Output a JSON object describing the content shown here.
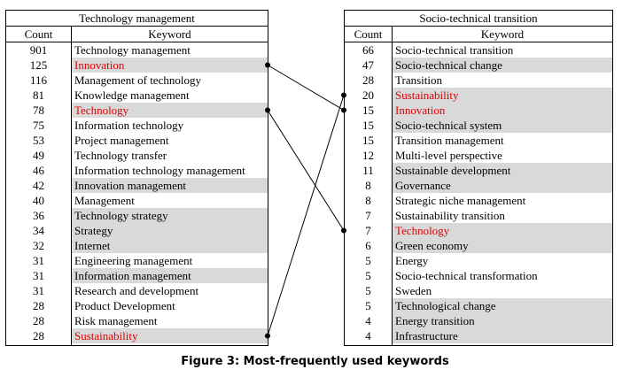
{
  "left_table": {
    "title": "Technology management",
    "count_header": "Count",
    "keyword_header": "Keyword",
    "rows": [
      {
        "count": "901",
        "keyword": "Technology management",
        "highlight": false,
        "red": false
      },
      {
        "count": "125",
        "keyword": "Innovation",
        "highlight": true,
        "red": true
      },
      {
        "count": "116",
        "keyword": "Management of technology",
        "highlight": false,
        "red": false
      },
      {
        "count": "81",
        "keyword": "Knowledge management",
        "highlight": false,
        "red": false
      },
      {
        "count": "78",
        "keyword": "Technology",
        "highlight": true,
        "red": true
      },
      {
        "count": "75",
        "keyword": "Information technology",
        "highlight": false,
        "red": false
      },
      {
        "count": "53",
        "keyword": "Project management",
        "highlight": false,
        "red": false
      },
      {
        "count": "49",
        "keyword": "Technology transfer",
        "highlight": false,
        "red": false
      },
      {
        "count": "46",
        "keyword": "Information technology management",
        "highlight": false,
        "red": false
      },
      {
        "count": "42",
        "keyword": "Innovation management",
        "highlight": true,
        "red": false
      },
      {
        "count": "40",
        "keyword": "Management",
        "highlight": false,
        "red": false
      },
      {
        "count": "36",
        "keyword": "Technology strategy",
        "highlight": true,
        "red": false
      },
      {
        "count": "34",
        "keyword": "Strategy",
        "highlight": true,
        "red": false
      },
      {
        "count": "32",
        "keyword": "Internet",
        "highlight": true,
        "red": false
      },
      {
        "count": "31",
        "keyword": "Engineering management",
        "highlight": false,
        "red": false
      },
      {
        "count": "31",
        "keyword": "Information management",
        "highlight": true,
        "red": false
      },
      {
        "count": "31",
        "keyword": "Research and development",
        "highlight": false,
        "red": false
      },
      {
        "count": "28",
        "keyword": "Product Development",
        "highlight": false,
        "red": false
      },
      {
        "count": "28",
        "keyword": "Risk management",
        "highlight": false,
        "red": false
      },
      {
        "count": "28",
        "keyword": "Sustainability",
        "highlight": true,
        "red": true
      }
    ]
  },
  "right_table": {
    "title": "Socio-technical transition",
    "count_header": "Count",
    "keyword_header": "Keyword",
    "rows": [
      {
        "count": "66",
        "keyword": "Socio-technical transition",
        "highlight": false,
        "red": false
      },
      {
        "count": "47",
        "keyword": "Socio-technical change",
        "highlight": true,
        "red": false
      },
      {
        "count": "28",
        "keyword": "Transition",
        "highlight": false,
        "red": false
      },
      {
        "count": "20",
        "keyword": "Sustainability",
        "highlight": true,
        "red": true
      },
      {
        "count": "15",
        "keyword": "Innovation",
        "highlight": true,
        "red": true
      },
      {
        "count": "15",
        "keyword": "Socio-technical system",
        "highlight": true,
        "red": false
      },
      {
        "count": "15",
        "keyword": "Transition management",
        "highlight": false,
        "red": false
      },
      {
        "count": "12",
        "keyword": "Multi-level perspective",
        "highlight": false,
        "red": false
      },
      {
        "count": "11",
        "keyword": "Sustainable development",
        "highlight": true,
        "red": false
      },
      {
        "count": "8",
        "keyword": "Governance",
        "highlight": true,
        "red": false
      },
      {
        "count": "8",
        "keyword": "Strategic niche management",
        "highlight": false,
        "red": false
      },
      {
        "count": "7",
        "keyword": "Sustainability transition",
        "highlight": false,
        "red": false
      },
      {
        "count": "7",
        "keyword": "Technology",
        "highlight": true,
        "red": true
      },
      {
        "count": "6",
        "keyword": "Green economy",
        "highlight": true,
        "red": false
      },
      {
        "count": "5",
        "keyword": "Energy",
        "highlight": false,
        "red": false
      },
      {
        "count": "5",
        "keyword": "Socio-technical transformation",
        "highlight": false,
        "red": false
      },
      {
        "count": "5",
        "keyword": "Sweden",
        "highlight": false,
        "red": false
      },
      {
        "count": "5",
        "keyword": "Technological change",
        "highlight": true,
        "red": false
      },
      {
        "count": "4",
        "keyword": "Energy transition",
        "highlight": true,
        "red": false
      },
      {
        "count": "4",
        "keyword": "Infrastructure",
        "highlight": true,
        "red": false
      }
    ]
  },
  "links": [
    {
      "from_left_row": 1,
      "to_right_row": 4
    },
    {
      "from_left_row": 4,
      "to_right_row": 12
    },
    {
      "from_left_row": 19,
      "to_right_row": 3
    }
  ],
  "colors": {
    "highlight": "#d9d9d9",
    "red_text": "#e00000",
    "line": "#000000"
  },
  "caption": "Figure 3: Most-frequently used keywords"
}
